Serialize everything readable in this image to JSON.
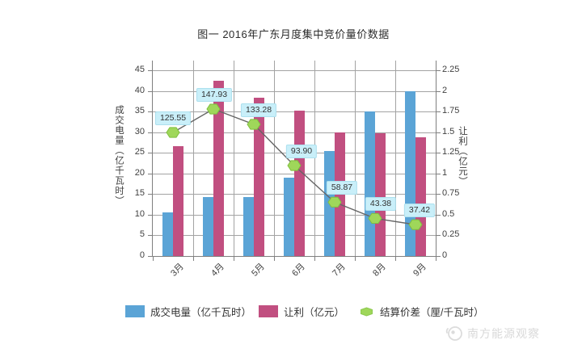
{
  "title": "图一 2016年广东月度集中竞价量价数据",
  "chart_data": {
    "type": "combo_bar_line",
    "categories": [
      "3月",
      "4月",
      "5月",
      "6月",
      "7月",
      "8月",
      "9月"
    ],
    "series": [
      {
        "name": "成交电量（亿千瓦时）",
        "type": "bar",
        "axis": "left",
        "color": "#5BA4D6",
        "values": [
          10.5,
          14.3,
          14.3,
          19,
          25.4,
          35,
          40
        ]
      },
      {
        "name": "让利（亿元）",
        "type": "bar",
        "axis": "right",
        "color": "#C14F80",
        "values": [
          1.33,
          2.12,
          1.92,
          1.76,
          1.5,
          1.49,
          1.44
        ]
      },
      {
        "name": "结算价差（厘/千瓦时）",
        "type": "line",
        "axis": "hidden",
        "marker": "hexagon",
        "marker_color": "#9FD75A",
        "marker_edge": "#7FBF3F",
        "line_color": "#666666",
        "values": [
          125.55,
          147.93,
          133.28,
          93.9,
          58.87,
          43.38,
          37.42
        ],
        "point_labels": [
          "125.55",
          "147.93",
          "133.28",
          "93.90",
          "58.87",
          "43.38",
          "37.42"
        ]
      }
    ],
    "left_axis": {
      "title": "成交电量（亿千瓦时）",
      "min": 0,
      "max": 45,
      "ticks": [
        "0",
        "5",
        "10",
        "15",
        "20",
        "25",
        "30",
        "35",
        "40",
        "45"
      ]
    },
    "right_axis": {
      "title": "让利（亿元）",
      "min": 0,
      "max": 2.25,
      "ticks": [
        "0",
        "0.25",
        "0.5",
        "0.75",
        "1",
        "1.25",
        "1.5",
        "1.75",
        "2",
        "2.25"
      ]
    },
    "grid": true,
    "legend_position": "bottom",
    "point_label_bg": "#C9EFF9"
  },
  "watermark": {
    "text": "南方能源观察"
  }
}
